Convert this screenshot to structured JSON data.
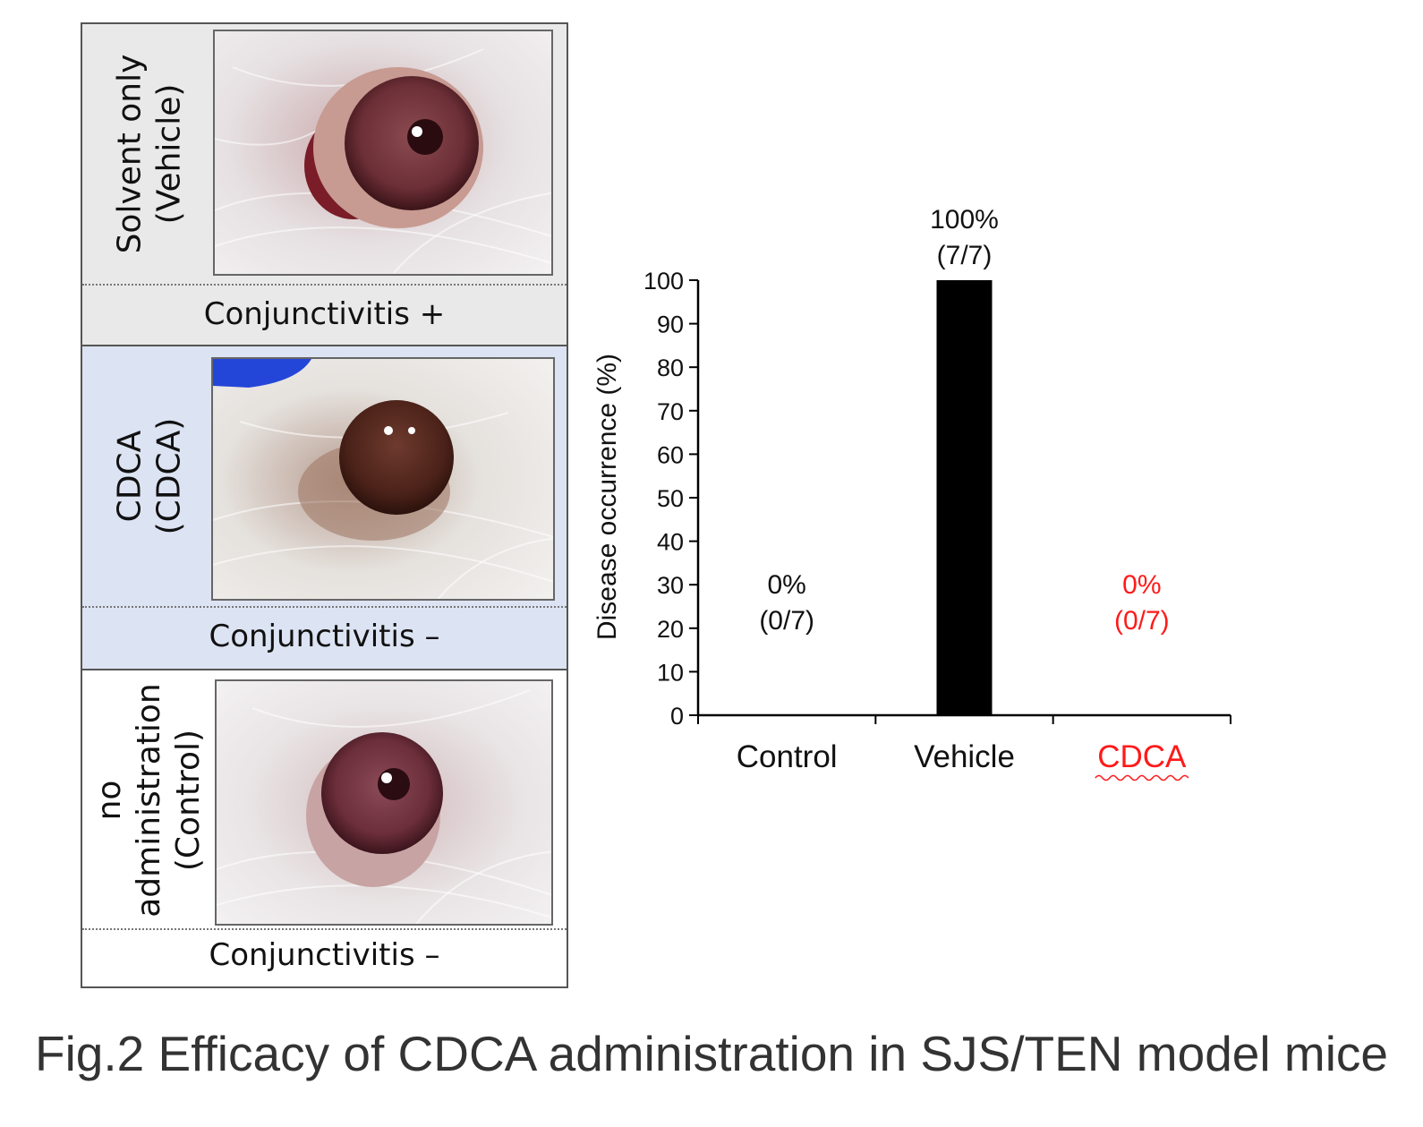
{
  "panels": [
    {
      "label_lines": [
        "Solvent only",
        "(Vehicle)"
      ],
      "status": "Conjunctivitis +"
    },
    {
      "label_lines": [
        "CDCA",
        "(CDCA)"
      ],
      "status": "Conjunctivitis –"
    },
    {
      "label_lines": [
        "no",
        "administration",
        "(Control)"
      ],
      "status": "Conjunctivitis –"
    }
  ],
  "caption": "Fig.2 Efficacy of CDCA administration in SJS/TEN model mice",
  "chart_data": {
    "type": "bar",
    "categories": [
      "Control",
      "Vehicle",
      "CDCA"
    ],
    "values": [
      0,
      100,
      0
    ],
    "annotations": [
      {
        "percent": "0%",
        "ratio": "(0/7)"
      },
      {
        "percent": "100%",
        "ratio": "(7/7)"
      },
      {
        "percent": "0%",
        "ratio": "(0/7)"
      }
    ],
    "ylabel": "Disease occurrence (%)",
    "xlabel": "",
    "ylim": [
      0,
      100
    ],
    "yticks": [
      0,
      10,
      20,
      30,
      40,
      50,
      60,
      70,
      80,
      90,
      100
    ],
    "bar_color": "#000000",
    "highlight_category": "CDCA",
    "highlight_color": "#ff1a1a",
    "grid": false,
    "legend": "none"
  }
}
